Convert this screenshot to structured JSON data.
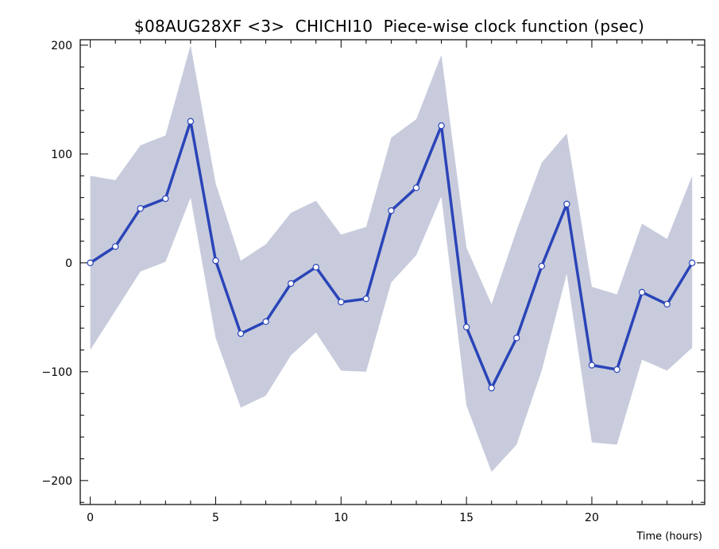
{
  "chart_data": {
    "type": "line",
    "title": "$08AUG28XF <3>  CHICHI10  Piece-wise clock function (psec)",
    "xlabel": "Time (hours)",
    "ylabel": "",
    "xlim": [
      -0.4,
      24.5
    ],
    "ylim": [
      -222,
      205
    ],
    "x_ticks": [
      0,
      5,
      10,
      15,
      20
    ],
    "y_ticks": [
      -200,
      -100,
      0,
      100,
      200
    ],
    "grid": false,
    "legend": "none",
    "series": [
      {
        "x": [
          0,
          1,
          2,
          3,
          4,
          5,
          6,
          7,
          8,
          9,
          10,
          11,
          12,
          13,
          14,
          15,
          16,
          17,
          18,
          19,
          20,
          21,
          22,
          23,
          24
        ],
        "values": [
          0,
          15,
          50,
          59,
          130,
          2,
          -65,
          -54,
          -19,
          -4,
          -36,
          -33,
          48,
          69,
          126,
          -59,
          -115,
          -69,
          -3,
          54,
          -94,
          -98,
          -27,
          -38,
          0
        ]
      }
    ],
    "band": {
      "upper": [
        80,
        76,
        108,
        117,
        200,
        73,
        2,
        17,
        46,
        57,
        26,
        33,
        115,
        132,
        191,
        14,
        -38,
        30,
        92,
        119,
        -22,
        -29,
        36,
        22,
        80
      ],
      "lower": [
        -80,
        -44,
        -8,
        1,
        60,
        -69,
        -133,
        -122,
        -85,
        -64,
        -99,
        -100,
        -18,
        7,
        61,
        -131,
        -192,
        -167,
        -99,
        -10,
        -165,
        -167,
        -89,
        -99,
        -78
      ]
    },
    "colors": {
      "line": "#2a44b8",
      "band": "#c7cbdc",
      "marker_fill": "#ffffff",
      "marker_stroke": "#2a44b8",
      "frame": "#000000"
    }
  }
}
